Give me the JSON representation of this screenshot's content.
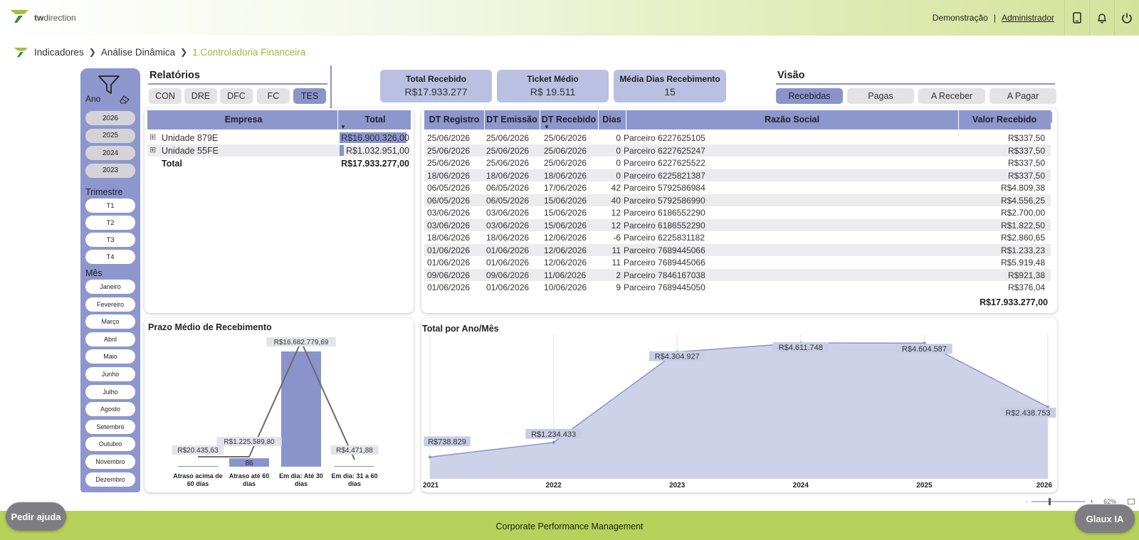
{
  "header": {
    "logo_text_bold": "tw",
    "logo_text": "direction",
    "demo_label": "Demonstração",
    "separator": "|",
    "admin_label": "Administrador"
  },
  "breadcrumb": {
    "item1": "Indicadores",
    "item2": "Análise Dinâmica",
    "item3": "1.Controladoria Financeira"
  },
  "filters": {
    "ano_label": "Ano",
    "years": [
      "2026",
      "2025",
      "2024",
      "2023"
    ],
    "trimestre_label": "Trimestre",
    "trimestres": [
      "T1",
      "T2",
      "T3",
      "T4"
    ],
    "mes_label": "Mês",
    "meses": [
      "Janeiro",
      "Fevereiro",
      "Março",
      "Abril",
      "Maio",
      "Junho",
      "Julho",
      "Agosto",
      "Setembro",
      "Outubro",
      "Novembro",
      "Dezembro"
    ]
  },
  "relatorios": {
    "title": "Relatórios",
    "tabs": [
      "CON",
      "DRE",
      "DFC",
      "FC",
      "TES"
    ],
    "active_tab": "TES"
  },
  "kpis": [
    {
      "title": "Total Recebido",
      "value": "R$17.933.277"
    },
    {
      "title": "Ticket Médio",
      "value": "R$ 19.511"
    },
    {
      "title": "Média Dias Recebimento",
      "value": "15"
    }
  ],
  "visao": {
    "title": "Visão",
    "tabs": [
      "Recebidas",
      "Pagas",
      "A Receber",
      "A Pagar"
    ],
    "active_tab": "Recebidas"
  },
  "empresa_table": {
    "headers": [
      "Empresa",
      "Total"
    ],
    "rows": [
      {
        "name": "Unidade 879E",
        "total": "R$16.900.326,00",
        "share": 0.942
      },
      {
        "name": "Unidade 55FE",
        "total": "R$1.032.951,00",
        "share": 0.058
      }
    ],
    "total_label": "Total",
    "total_value": "R$17.933.277,00"
  },
  "recebidos_table": {
    "headers": [
      "DT Registro",
      "DT Emissão",
      "DT Recebido",
      "Dias",
      "Razão Social",
      "Valor Recebido"
    ],
    "rows": [
      [
        "25/06/2026",
        "25/06/2026",
        "25/06/2026",
        "0",
        "Parceiro 6227625105",
        "R$337,50"
      ],
      [
        "25/06/2026",
        "25/06/2026",
        "25/06/2026",
        "0",
        "Parceiro 6227625247",
        "R$337,50"
      ],
      [
        "25/06/2026",
        "25/06/2026",
        "25/06/2026",
        "0",
        "Parceiro 6227625522",
        "R$337,50"
      ],
      [
        "18/06/2026",
        "18/06/2026",
        "18/06/2026",
        "0",
        "Parceiro 6225821387",
        "R$337,50"
      ],
      [
        "06/05/2026",
        "06/05/2026",
        "17/06/2026",
        "42",
        "Parceiro 5792586984",
        "R$4.809,38"
      ],
      [
        "06/05/2026",
        "06/05/2026",
        "15/06/2026",
        "40",
        "Parceiro 5792586990",
        "R$4.556,25"
      ],
      [
        "03/06/2026",
        "03/06/2026",
        "15/06/2026",
        "12",
        "Parceiro 6186552290",
        "R$2.700,00"
      ],
      [
        "03/06/2026",
        "03/06/2026",
        "15/06/2026",
        "12",
        "Parceiro 6186552290",
        "R$1.822,50"
      ],
      [
        "18/06/2026",
        "18/06/2026",
        "12/06/2026",
        "-6",
        "Parceiro 6225831182",
        "R$2.860,65"
      ],
      [
        "01/06/2026",
        "01/06/2026",
        "12/06/2026",
        "11",
        "Parceiro 7689445066",
        "R$1.233,23"
      ],
      [
        "01/06/2026",
        "01/06/2026",
        "12/06/2026",
        "11",
        "Parceiro 7689445066",
        "R$5.919,48"
      ],
      [
        "09/06/2026",
        "09/06/2026",
        "11/06/2026",
        "2",
        "Parceiro 7846167038",
        "R$921,38"
      ],
      [
        "01/06/2026",
        "01/06/2026",
        "10/06/2026",
        "9",
        "Parceiro 7689445050",
        "R$376,04"
      ]
    ],
    "total_value": "R$17.933.277,00"
  },
  "chart_data": [
    {
      "type": "bar",
      "title": "Prazo Médio de Recebimento",
      "categories": [
        "Atraso acima de 60 dias",
        "Atraso até 60 dias",
        "Em dia: Até 30 dias",
        "Em dia: 31 a 60 dias"
      ],
      "category_lines": [
        [
          "Atraso acima de",
          "60 dias"
        ],
        [
          "Atraso até 60",
          "dias"
        ],
        [
          "Em dia: Até 30",
          "dias"
        ],
        [
          "Em dia: 31 a 60",
          "dias"
        ]
      ],
      "values": [
        20435.63,
        1225589.8,
        16682779.69,
        4471.88
      ],
      "value_labels": [
        "R$20.435,63",
        "R$1.225.589,80",
        "R$16.682.779,69",
        "R$4.471,88"
      ],
      "overlay_labels": [
        "",
        "86",
        "",
        ""
      ],
      "ylim": [
        0,
        16682779.69
      ]
    },
    {
      "type": "area",
      "title": "Total por Ano/Mês",
      "x": [
        "2021",
        "2022",
        "2023",
        "2024",
        "2025",
        "2026"
      ],
      "values": [
        738829,
        1234433,
        4304927,
        4611748,
        4604587,
        2438753
      ],
      "value_labels": [
        "R$738.829",
        "R$1.234.433",
        "R$4.304.927",
        "R$4.611.748",
        "R$4.604.587",
        "R$2.438.753"
      ],
      "ylim": [
        0,
        4900000
      ],
      "color": "#cdd2e9",
      "line_color": "#8a94cb"
    }
  ],
  "zoom": {
    "level": "62%",
    "minus": "-",
    "plus": "+"
  },
  "help_button": "Pedir ajuda",
  "glaux_button": "Glaux IA",
  "footer": "Corporate Performance Management",
  "colors": {
    "accent": "#8d97cd",
    "brand_green": "#b7d15a",
    "active_breadcrumb": "#9aba3c"
  }
}
